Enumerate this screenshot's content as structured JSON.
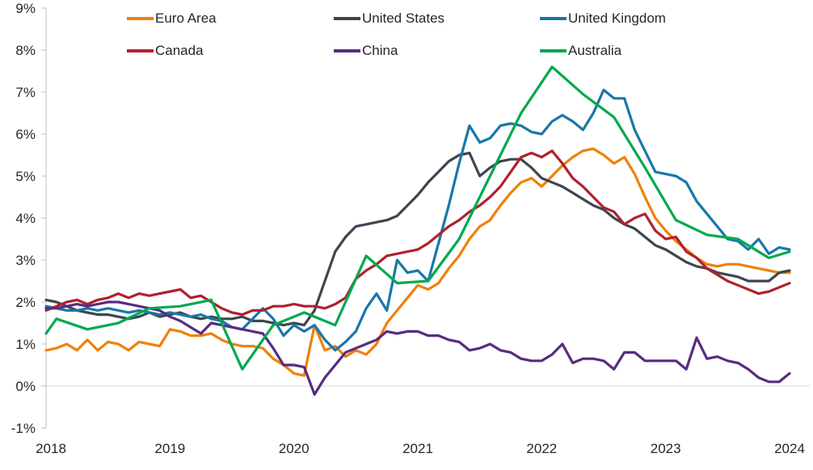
{
  "chart_data": {
    "type": "line",
    "title": "",
    "xlabel": "",
    "ylabel": "",
    "x_axis": {
      "tick_labels": [
        "2018",
        "2019",
        "2020",
        "2021",
        "2022",
        "2023",
        "2024"
      ],
      "tick_month_positions": [
        0,
        12,
        24,
        36,
        48,
        60,
        72
      ],
      "domain_months": [
        0,
        72
      ]
    },
    "y_axis": {
      "tick_labels": [
        "-1%",
        "0%",
        "1%",
        "2%",
        "3%",
        "4%",
        "5%",
        "6%",
        "7%",
        "8%",
        "9%"
      ],
      "tick_values": [
        -1,
        0,
        1,
        2,
        3,
        4,
        5,
        6,
        7,
        8,
        9
      ],
      "min": -1,
      "max": 9,
      "format": "percent"
    },
    "grid": {
      "zero_line_only": true
    },
    "legend_position": "top",
    "series": [
      {
        "name": "Euro Area",
        "color": "#EF8109",
        "frequency": "monthly",
        "start": "2018-01",
        "values": [
          0.85,
          0.9,
          1.0,
          0.85,
          1.1,
          0.85,
          1.05,
          1.0,
          0.85,
          1.05,
          1.0,
          0.95,
          1.35,
          1.3,
          1.2,
          1.2,
          1.25,
          1.1,
          1.0,
          0.95,
          0.95,
          0.9,
          0.65,
          0.5,
          0.3,
          0.25,
          1.45,
          0.85,
          0.95,
          0.7,
          0.85,
          0.75,
          1.0,
          1.5,
          1.8,
          2.1,
          2.4,
          2.3,
          2.45,
          2.8,
          3.1,
          3.5,
          3.8,
          3.95,
          4.3,
          4.6,
          4.85,
          4.95,
          4.75,
          5.0,
          5.25,
          5.45,
          5.6,
          5.65,
          5.5,
          5.3,
          5.45,
          5.05,
          4.5,
          4.0,
          3.7,
          3.45,
          3.25,
          3.05,
          2.9,
          2.85,
          2.9,
          2.9,
          2.85,
          2.8,
          2.75,
          2.7,
          2.7
        ]
      },
      {
        "name": "United States",
        "color": "#3D4650",
        "frequency": "monthly",
        "start": "2018-01",
        "values": [
          2.05,
          2.0,
          1.9,
          1.8,
          1.75,
          1.7,
          1.7,
          1.65,
          1.6,
          1.65,
          1.75,
          1.65,
          1.7,
          1.75,
          1.65,
          1.6,
          1.65,
          1.6,
          1.6,
          1.65,
          1.55,
          1.55,
          1.5,
          1.45,
          1.5,
          1.45,
          1.8,
          2.5,
          3.2,
          3.55,
          3.8,
          3.85,
          3.9,
          3.95,
          4.05,
          4.3,
          4.55,
          4.85,
          5.1,
          5.35,
          5.5,
          5.55,
          5.0,
          5.2,
          5.35,
          5.4,
          5.4,
          5.2,
          4.95,
          4.85,
          4.75,
          4.6,
          4.45,
          4.3,
          4.2,
          4.0,
          3.85,
          3.75,
          3.55,
          3.35,
          3.25,
          3.1,
          2.95,
          2.85,
          2.8,
          2.7,
          2.65,
          2.6,
          2.5,
          2.5,
          2.5,
          2.7,
          2.75
        ]
      },
      {
        "name": "United Kingdom",
        "color": "#1878A8",
        "frequency": "monthly",
        "start": "2018-01",
        "values": [
          1.9,
          1.85,
          1.8,
          1.8,
          1.85,
          1.8,
          1.85,
          1.8,
          1.75,
          1.8,
          1.75,
          1.7,
          1.75,
          1.7,
          1.65,
          1.7,
          1.6,
          1.55,
          1.4,
          1.35,
          1.6,
          1.85,
          1.6,
          1.2,
          1.45,
          1.3,
          1.45,
          1.1,
          0.85,
          1.05,
          1.3,
          1.85,
          2.2,
          1.8,
          3.0,
          2.7,
          2.75,
          2.5,
          3.4,
          4.3,
          5.3,
          6.2,
          5.8,
          5.9,
          6.2,
          6.25,
          6.2,
          6.05,
          6.0,
          6.3,
          6.45,
          6.3,
          6.1,
          6.5,
          7.05,
          6.85,
          6.85,
          6.1,
          5.6,
          5.1,
          5.05,
          5.0,
          4.85,
          4.4,
          4.1,
          3.8,
          3.5,
          3.45,
          3.25,
          3.5,
          3.15,
          3.3,
          3.25
        ]
      },
      {
        "name": "Canada",
        "color": "#B0212E",
        "frequency": "monthly",
        "start": "2018-01",
        "values": [
          1.8,
          1.9,
          2.0,
          2.05,
          1.95,
          2.05,
          2.1,
          2.2,
          2.1,
          2.2,
          2.15,
          2.2,
          2.25,
          2.3,
          2.1,
          2.15,
          2.0,
          1.85,
          1.75,
          1.7,
          1.8,
          1.8,
          1.9,
          1.9,
          1.95,
          1.9,
          1.9,
          1.85,
          1.95,
          2.1,
          2.55,
          2.75,
          2.9,
          3.1,
          3.15,
          3.2,
          3.25,
          3.4,
          3.6,
          3.8,
          3.95,
          4.15,
          4.3,
          4.5,
          4.75,
          5.1,
          5.45,
          5.55,
          5.45,
          5.6,
          5.3,
          4.95,
          4.75,
          4.5,
          4.25,
          4.15,
          3.85,
          4.0,
          4.1,
          3.7,
          3.5,
          3.55,
          3.2,
          3.05,
          2.8,
          2.65,
          2.5,
          2.4,
          2.3,
          2.2,
          2.25,
          2.35,
          2.45
        ]
      },
      {
        "name": "China",
        "color": "#582C81",
        "frequency": "monthly",
        "start": "2018-01",
        "values": [
          1.85,
          1.85,
          1.9,
          1.95,
          1.9,
          1.95,
          2.0,
          2.0,
          1.95,
          1.9,
          1.85,
          1.8,
          1.65,
          1.55,
          1.4,
          1.25,
          1.5,
          1.45,
          1.4,
          1.35,
          1.3,
          1.25,
          0.9,
          0.5,
          0.5,
          0.45,
          -0.2,
          0.2,
          0.5,
          0.8,
          0.9,
          1.0,
          1.1,
          1.3,
          1.25,
          1.3,
          1.3,
          1.2,
          1.2,
          1.1,
          1.05,
          0.85,
          0.9,
          1.0,
          0.85,
          0.8,
          0.65,
          0.6,
          0.6,
          0.75,
          1.0,
          0.55,
          0.65,
          0.65,
          0.6,
          0.4,
          0.8,
          0.8,
          0.6,
          0.6,
          0.6,
          0.6,
          0.4,
          1.15,
          0.65,
          0.7,
          0.6,
          0.55,
          0.4,
          0.2,
          0.1,
          0.1,
          0.3
        ]
      },
      {
        "name": "Australia",
        "color": "#00A94E",
        "frequency": "quarterly",
        "start": "2018-01",
        "points": [
          [
            0,
            1.25
          ],
          [
            1,
            1.6
          ],
          [
            4,
            1.35
          ],
          [
            7,
            1.5
          ],
          [
            10,
            1.85
          ],
          [
            13,
            1.9
          ],
          [
            16,
            2.05
          ],
          [
            19,
            0.4
          ],
          [
            22,
            1.45
          ],
          [
            25,
            1.75
          ],
          [
            28,
            1.45
          ],
          [
            31,
            3.1
          ],
          [
            34,
            2.45
          ],
          [
            37,
            2.5
          ],
          [
            40,
            3.5
          ],
          [
            43,
            5.0
          ],
          [
            46,
            6.5
          ],
          [
            49,
            7.6
          ],
          [
            52,
            6.95
          ],
          [
            55,
            6.4
          ],
          [
            58,
            5.2
          ],
          [
            61,
            3.95
          ],
          [
            64,
            3.6
          ],
          [
            67,
            3.5
          ],
          [
            70,
            3.05
          ],
          [
            72,
            3.2
          ]
        ]
      }
    ],
    "legend_rows": [
      [
        "Euro Area",
        "United States",
        "United Kingdom"
      ],
      [
        "Canada",
        "China",
        "Australia"
      ]
    ]
  },
  "style": {
    "axis_line_color": "#BFBFBF",
    "zero_grid_color": "#D9D9D9",
    "tick_text_color": "#262626",
    "background": "#FFFFFF"
  }
}
